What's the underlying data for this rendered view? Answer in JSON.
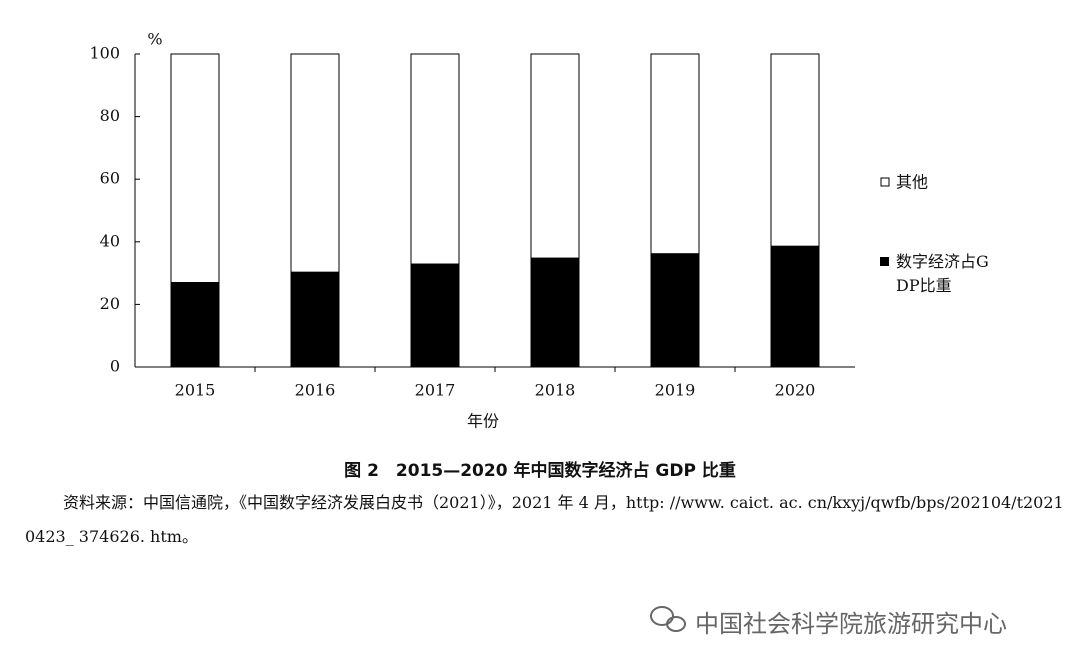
{
  "chart_data": {
    "type": "stacked_bar",
    "title": "图 2　2015—2020 年中国数字经济占 GDP 比重",
    "y_unit": "%",
    "x_label": "年份",
    "categories": [
      "2015",
      "2016",
      "2017",
      "2018",
      "2019",
      "2020"
    ],
    "series": [
      {
        "name": "数字经济占GDP比重",
        "color": "#000000",
        "values": [
          27.0,
          30.3,
          32.9,
          34.8,
          36.2,
          38.6
        ]
      },
      {
        "name": "其他",
        "color": "#ffffff",
        "values": [
          73.0,
          69.7,
          67.1,
          65.2,
          63.8,
          61.4
        ]
      }
    ],
    "ylim": [
      0,
      100
    ],
    "yticks": [
      0,
      20,
      40,
      60,
      80,
      100
    ],
    "source": "资料来源：中国信通院，《中国数字经济发展白皮书（2021）》，2021 年 4 月，http: //www. caict. ac. cn/kxyj/qwfb/bps/202104/t20210423_ 374626. htm。",
    "watermark": "中国社会科学院旅游研究中心"
  }
}
